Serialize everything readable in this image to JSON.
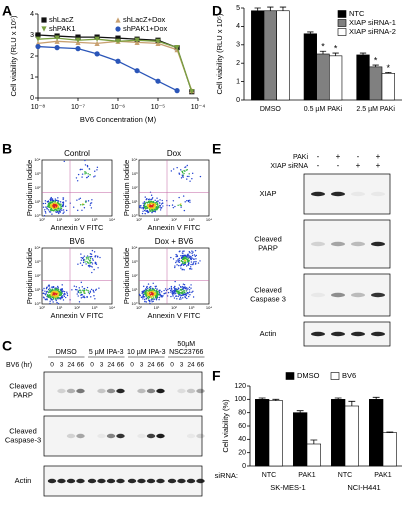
{
  "panel_labels": [
    "A",
    "B",
    "C",
    "D",
    "E",
    "F"
  ],
  "chart_data": [
    {
      "type": "line",
      "x_label": "BV6 Concentration (M)",
      "y_label": "Cell viability (RLU x 10⁵)",
      "x": [
        1e-08,
        3e-08,
        1e-07,
        3e-07,
        1e-06,
        3e-06,
        1e-05,
        3e-05,
        7e-05
      ],
      "xscale": "log",
      "xlim": [
        1e-08,
        0.0001
      ],
      "xticks": [
        {
          "value": 1e-08,
          "label": "10⁻⁸"
        },
        {
          "value": 1e-07,
          "label": "10⁻⁷"
        },
        {
          "value": 1e-06,
          "label": "10⁻⁶"
        },
        {
          "value": 1e-05,
          "label": "10⁻⁵"
        },
        {
          "value": 0.0001,
          "label": "10⁻⁴"
        }
      ],
      "ylim": [
        0,
        4
      ],
      "yticks": [
        0,
        1,
        2,
        3,
        4
      ],
      "legend": "upper left",
      "series": [
        {
          "name": "shLacZ",
          "color": "#111111",
          "marker": "square",
          "values": [
            3.0,
            2.95,
            2.9,
            2.9,
            2.85,
            2.8,
            2.75,
            2.4,
            0.3
          ]
        },
        {
          "name": "shLacZ+Dox",
          "color": "#c8a070",
          "marker": "triangle",
          "values": [
            2.6,
            2.7,
            2.65,
            2.6,
            2.7,
            2.65,
            2.6,
            2.3,
            0.35
          ]
        },
        {
          "name": "shPAK1",
          "color": "#7aa040",
          "marker": "triangle-down",
          "values": [
            2.8,
            2.85,
            2.75,
            2.8,
            2.7,
            2.75,
            2.7,
            2.4,
            0.3
          ]
        },
        {
          "name": "shPAK1+Dox",
          "color": "#2a55b8",
          "marker": "circle",
          "values": [
            2.45,
            2.4,
            2.35,
            2.1,
            1.75,
            1.3,
            0.8,
            0.35,
            null
          ]
        }
      ]
    },
    {
      "type": "bar",
      "y_label": "Cell viability (RLU x 10⁵)",
      "categories": [
        "DMSO",
        "0.5 µM PAKi",
        "2.5 µM PAKi"
      ],
      "ylim": [
        0,
        5
      ],
      "yticks": [
        0,
        1,
        2,
        3,
        4,
        5
      ],
      "legend": "upper right",
      "series": [
        {
          "name": "NTC",
          "color": "#000000",
          "values": [
            4.85,
            3.6,
            2.45
          ],
          "errors": [
            0.15,
            0.1,
            0.1
          ],
          "significance": [
            null,
            null,
            null
          ]
        },
        {
          "name": "XIAP siRNA-1",
          "color": "#808080",
          "values": [
            4.85,
            2.5,
            1.8
          ],
          "errors": [
            0.2,
            0.15,
            0.1
          ],
          "significance": [
            null,
            "*",
            "*"
          ]
        },
        {
          "name": "XIAP siRNA-2",
          "color": "#ffffff",
          "values": [
            4.85,
            2.4,
            1.45
          ],
          "errors": [
            0.2,
            0.15,
            0.05
          ],
          "significance": [
            null,
            "*",
            "*"
          ]
        }
      ]
    },
    {
      "type": "bar",
      "y_label": "Cell viability (%)",
      "category_axis_label": "siRNA:",
      "categories": [
        "NTC",
        "PAK1",
        "NTC",
        "PAK1"
      ],
      "groups": [
        "SK-MES-1",
        "NCI-H441"
      ],
      "ylim": [
        0,
        120
      ],
      "yticks": [
        0,
        20,
        40,
        60,
        80,
        100,
        120
      ],
      "legend": "upper center",
      "series": [
        {
          "name": "DMSO",
          "color": "#000000",
          "values": [
            100,
            80,
            100,
            100
          ],
          "errors": [
            2,
            3,
            2,
            3
          ],
          "significance": [
            null,
            null,
            null,
            null
          ]
        },
        {
          "name": "BV6",
          "color": "#ffffff",
          "values": [
            98,
            33,
            90,
            50
          ],
          "errors": [
            2,
            6,
            7,
            1
          ],
          "significance": [
            null,
            null,
            null,
            null
          ]
        }
      ]
    }
  ],
  "panel_b": {
    "plots": [
      "Control",
      "Dox",
      "BV6",
      "Dox + BV6"
    ],
    "x_label": "Annexin V FITC",
    "y_label": "Propidium Iodide",
    "ticks": [
      "10⁰",
      "10¹",
      "10²",
      "10³",
      "10⁴"
    ]
  },
  "panel_c": {
    "treatments": [
      [
        "DMSO"
      ],
      [
        "5 µM IPA-3"
      ],
      [
        "10 µM IPA-3"
      ],
      [
        "50µM",
        "NSC23766"
      ]
    ],
    "time_label": "BV6 (hr)",
    "times": [
      0,
      3,
      24,
      66
    ],
    "rows": [
      [
        "Cleaved",
        "PARP"
      ],
      [
        "Cleaved",
        "Caspase-3"
      ],
      [
        "Actin"
      ]
    ]
  },
  "panel_e": {
    "conditions": [
      {
        "label": "PAKi",
        "signs": [
          "-",
          "+",
          "-",
          "+"
        ]
      },
      {
        "label": "XIAP siRNA",
        "signs": [
          "-",
          "-",
          "+",
          "+"
        ]
      }
    ],
    "rows": [
      [
        "XIAP"
      ],
      [
        "Cleaved",
        "PARP"
      ],
      [
        "Cleaved",
        "Caspase 3"
      ],
      [
        "Actin"
      ]
    ]
  }
}
